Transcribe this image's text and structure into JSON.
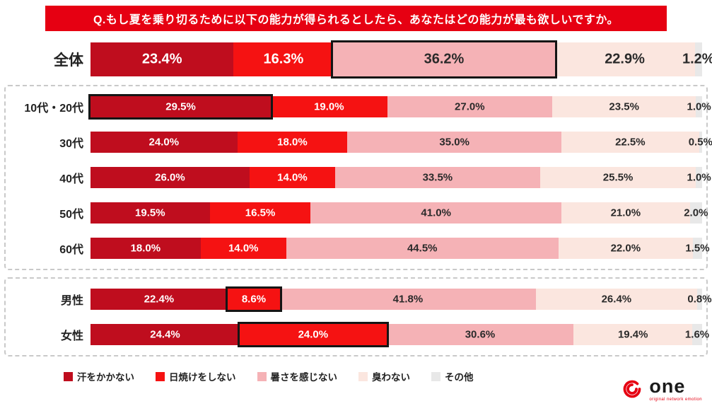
{
  "title": "Q.もし夏を乗り切るために以下の能力が得られるとしたら、あなたはどの能力が最も欲しいですか。",
  "colors": {
    "title_bg": "#e60012",
    "highlight_border": "#151515"
  },
  "chart_data": {
    "type": "bar",
    "stacked": true,
    "orientation": "horizontal",
    "unit": "%",
    "series_labels": [
      "汗をかかない",
      "日焼けをしない",
      "暑さを感じない",
      "臭わない",
      "その他"
    ],
    "series_colors": [
      "#bf0d1e",
      "#f51212",
      "#f5b2b6",
      "#fbe6df",
      "#e8e8e8"
    ],
    "series_text_colors": [
      "#ffffff",
      "#ffffff",
      "#2a2a2a",
      "#2a2a2a",
      "#2a2a2a"
    ],
    "groups": [
      {
        "label": "全体",
        "section": "overall",
        "values": [
          23.4,
          16.3,
          36.2,
          22.9,
          1.2
        ],
        "highlight": 2
      },
      {
        "label": "10代・20代",
        "section": "age",
        "values": [
          29.5,
          19.0,
          27.0,
          23.5,
          1.0
        ],
        "highlight": 0
      },
      {
        "label": "30代",
        "section": "age",
        "values": [
          24.0,
          18.0,
          35.0,
          22.5,
          0.5
        ],
        "highlight": null
      },
      {
        "label": "40代",
        "section": "age",
        "values": [
          26.0,
          14.0,
          33.5,
          25.5,
          1.0
        ],
        "highlight": null
      },
      {
        "label": "50代",
        "section": "age",
        "values": [
          19.5,
          16.5,
          41.0,
          21.0,
          2.0
        ],
        "highlight": null
      },
      {
        "label": "60代",
        "section": "age",
        "values": [
          18.0,
          14.0,
          44.5,
          22.0,
          1.5
        ],
        "highlight": null
      },
      {
        "label": "男性",
        "section": "gender",
        "values": [
          22.4,
          8.6,
          41.8,
          26.4,
          0.8
        ],
        "highlight": 1
      },
      {
        "label": "女性",
        "section": "gender",
        "values": [
          24.4,
          24.0,
          30.6,
          19.4,
          1.6
        ],
        "highlight": 1
      }
    ]
  },
  "logo": {
    "text": "one",
    "tagline": "original network emotion"
  }
}
